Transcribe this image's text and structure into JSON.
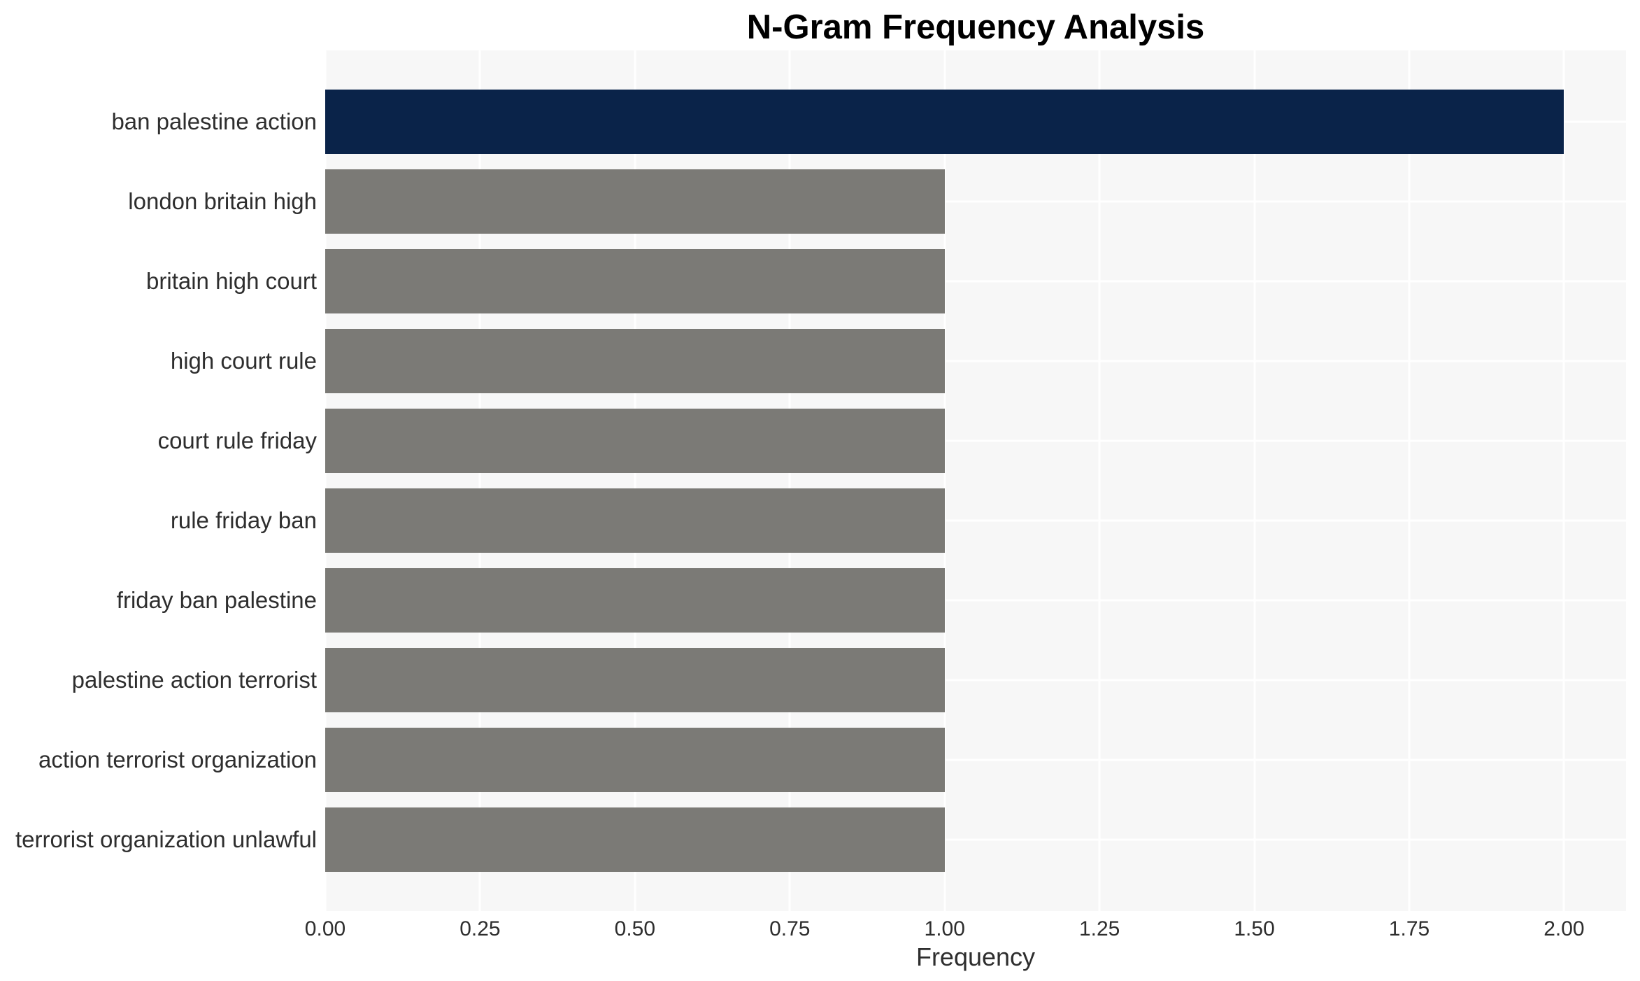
{
  "chart_data": {
    "type": "bar",
    "orientation": "horizontal",
    "title": "N-Gram Frequency Analysis",
    "xlabel": "Frequency",
    "ylabel": "",
    "categories": [
      "ban palestine action",
      "london britain high",
      "britain high court",
      "high court rule",
      "court rule friday",
      "rule friday ban",
      "friday ban palestine",
      "palestine action terrorist",
      "action terrorist organization",
      "terrorist organization unlawful"
    ],
    "values": [
      2,
      1,
      1,
      1,
      1,
      1,
      1,
      1,
      1,
      1
    ],
    "bar_colors": [
      "#0a2349",
      "#7b7a76",
      "#7b7a76",
      "#7b7a76",
      "#7b7a76",
      "#7b7a76",
      "#7b7a76",
      "#7b7a76",
      "#7b7a76",
      "#7b7a76"
    ],
    "xlim": [
      0,
      2.1
    ],
    "x_tick_values": [
      0,
      0.25,
      0.5,
      0.75,
      1.0,
      1.25,
      1.5,
      1.75,
      2.0
    ],
    "x_tick_labels": [
      "0.00",
      "0.25",
      "0.50",
      "0.75",
      "1.00",
      "1.25",
      "1.50",
      "1.75",
      "2.00"
    ],
    "grid": true,
    "legend_position": "none",
    "colors": {
      "plot_background": "#f7f7f7",
      "gridline": "#ffffff",
      "highlight_bar": "#0a2349",
      "default_bar": "#7b7a76",
      "tick_text": "#2e2e2e",
      "title_text": "#000000"
    }
  }
}
